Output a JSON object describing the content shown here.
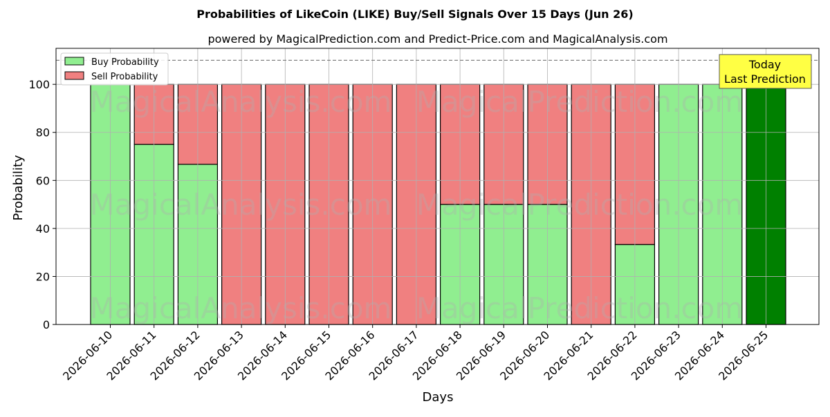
{
  "chart_data": {
    "type": "bar",
    "title": "Probabilities of LikeCoin (LIKE) Buy/Sell Signals Over 15 Days (Jun 26)",
    "subtitle": "powered by MagicalPrediction.com and Predict-Price.com and MagicalAnalysis.com",
    "xlabel": "Days",
    "ylabel": "Probability",
    "ylim": [
      0,
      115
    ],
    "yticks": [
      0,
      20,
      40,
      60,
      80,
      100
    ],
    "grid": true,
    "stacked": true,
    "legend_position": "top-left",
    "reference_line": 110,
    "categories": [
      "2026-06-10",
      "2026-06-11",
      "2026-06-12",
      "2026-06-13",
      "2026-06-14",
      "2026-06-15",
      "2026-06-16",
      "2026-06-17",
      "2026-06-18",
      "2026-06-19",
      "2026-06-20",
      "2026-06-21",
      "2026-06-22",
      "2026-06-23",
      "2026-06-24",
      "2026-06-25"
    ],
    "series": [
      {
        "name": "Buy Probability",
        "color": "#90ee90",
        "values": [
          100,
          75,
          66.7,
          0,
          0,
          0,
          0,
          0,
          50,
          50,
          50,
          0,
          33.3,
          100,
          100,
          100
        ]
      },
      {
        "name": "Sell Probability",
        "color": "#f08080",
        "values": [
          0,
          25,
          33.3,
          100,
          100,
          100,
          100,
          100,
          50,
          50,
          50,
          100,
          66.7,
          0,
          0,
          0
        ]
      }
    ],
    "highlight": {
      "index": 15,
      "color": "#008000",
      "annotation": [
        "Today",
        "Last Prediction"
      ],
      "annotation_bg": "#ffff44"
    },
    "watermarks": [
      "MagicalAnalysis.com",
      "MagicalPrediction.com"
    ]
  }
}
